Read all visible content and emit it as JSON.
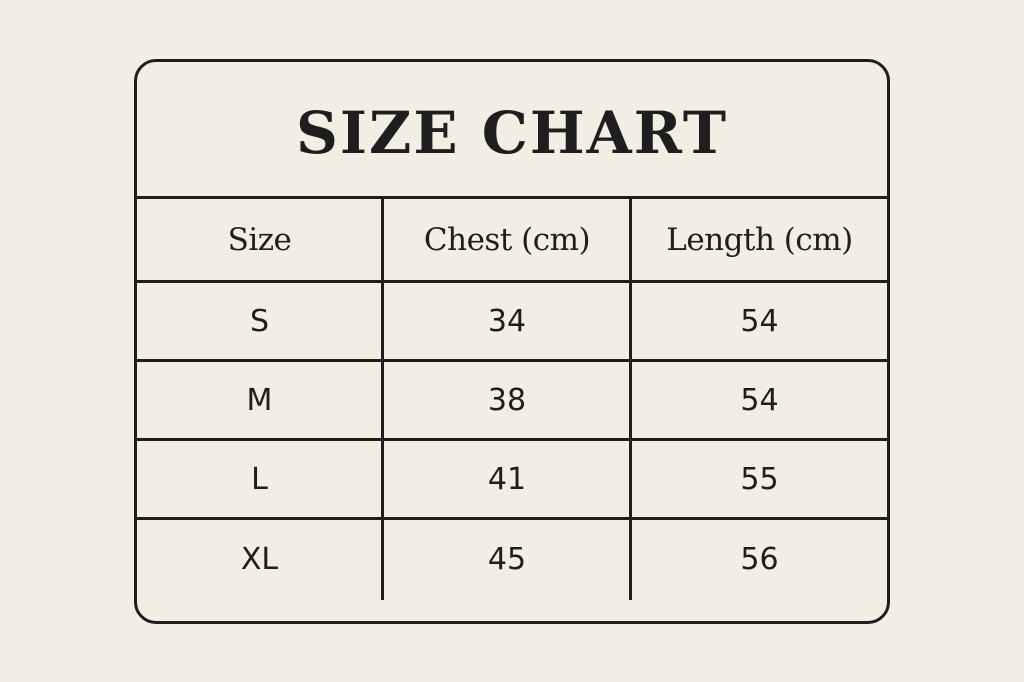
{
  "title": "SIZE CHART",
  "table": {
    "headers": [
      "Size",
      "Chest (cm)",
      "Length (cm)"
    ],
    "rows": [
      [
        "S",
        "34",
        "54"
      ],
      [
        "M",
        "38",
        "54"
      ],
      [
        "L",
        "41",
        "55"
      ],
      [
        "XL",
        "45",
        "56"
      ]
    ]
  },
  "colors": {
    "background": "#f3eee4",
    "ink": "#1e1e1e"
  }
}
